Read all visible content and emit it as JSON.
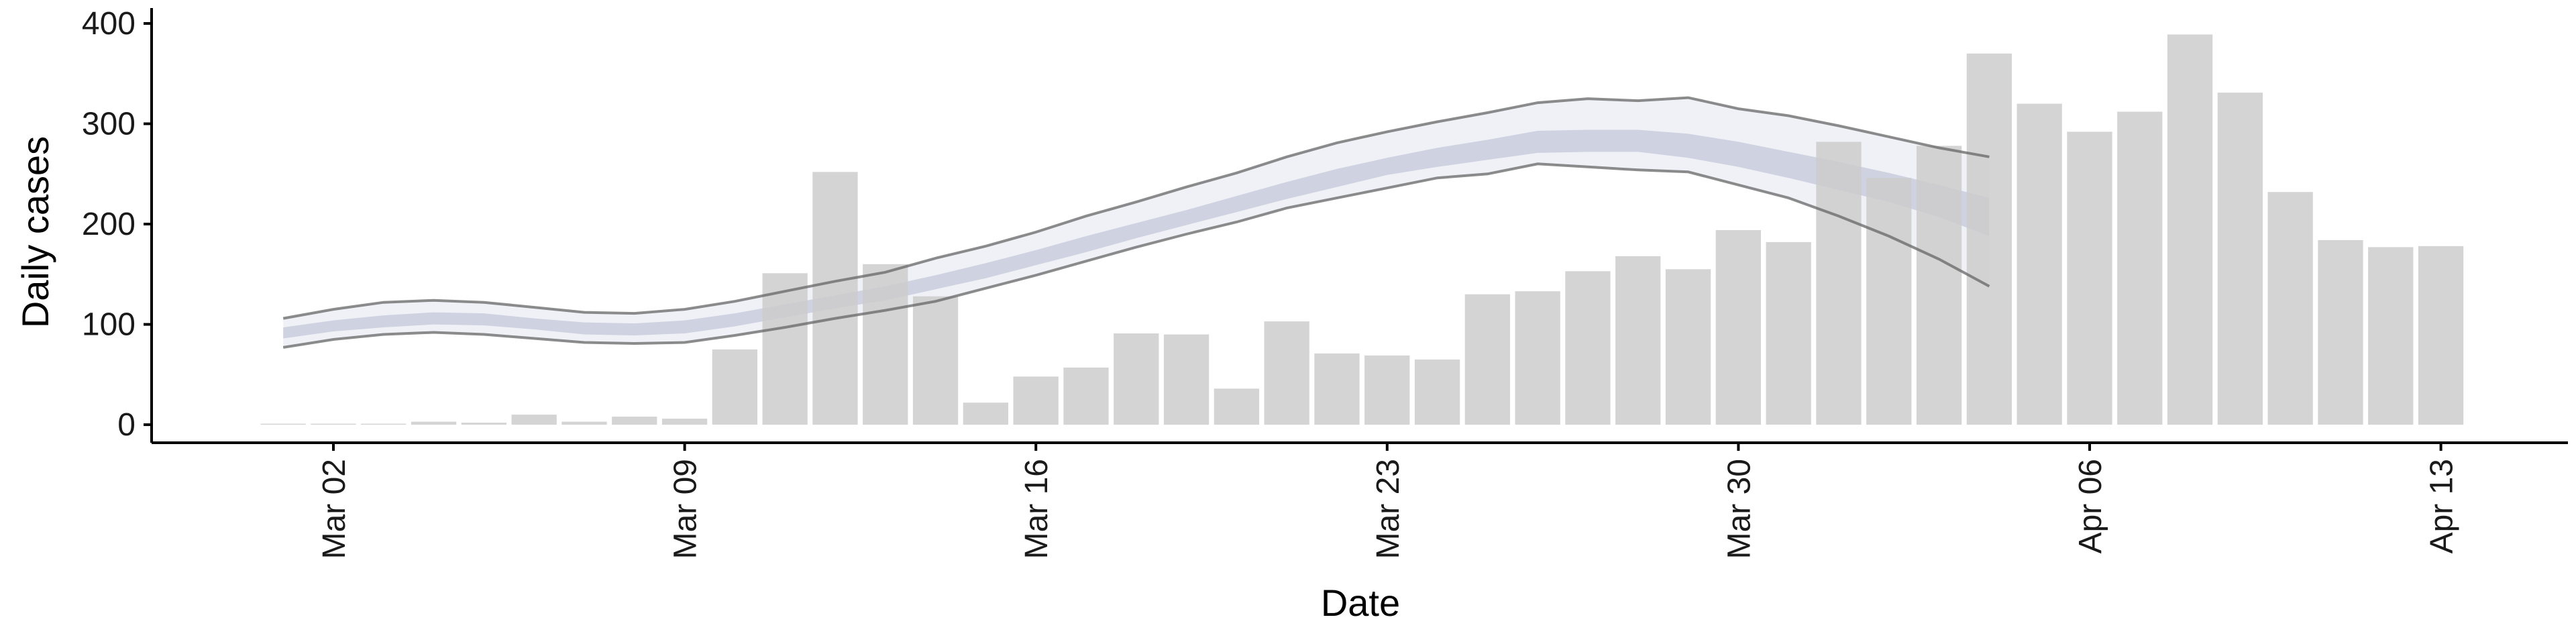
{
  "chart_data": {
    "type": "bar",
    "xlabel": "Date",
    "ylabel": "Daily cases",
    "ylim": [
      -18,
      410
    ],
    "yticks": [
      0,
      100,
      200,
      300,
      400
    ],
    "xticks": [
      {
        "date": "2020-03-02",
        "label": "Mar 02"
      },
      {
        "date": "2020-03-09",
        "label": "Mar 09"
      },
      {
        "date": "2020-03-16",
        "label": "Mar 16"
      },
      {
        "date": "2020-03-23",
        "label": "Mar 23"
      },
      {
        "date": "2020-03-30",
        "label": "Mar 30"
      },
      {
        "date": "2020-04-06",
        "label": "Apr 06"
      },
      {
        "date": "2020-04-13",
        "label": "Apr 13"
      }
    ],
    "xlim": [
      "2020-02-26",
      "2020-04-15"
    ],
    "grid": false,
    "bars": {
      "name": "Daily cases",
      "color": "#cccccc",
      "dates": [
        "2020-03-01",
        "2020-03-02",
        "2020-03-03",
        "2020-03-04",
        "2020-03-05",
        "2020-03-06",
        "2020-03-07",
        "2020-03-08",
        "2020-03-09",
        "2020-03-10",
        "2020-03-11",
        "2020-03-12",
        "2020-03-13",
        "2020-03-14",
        "2020-03-15",
        "2020-03-16",
        "2020-03-17",
        "2020-03-18",
        "2020-03-19",
        "2020-03-20",
        "2020-03-21",
        "2020-03-22",
        "2020-03-23",
        "2020-03-24",
        "2020-03-25",
        "2020-03-26",
        "2020-03-27",
        "2020-03-28",
        "2020-03-29",
        "2020-03-30",
        "2020-03-31",
        "2020-04-01",
        "2020-04-02",
        "2020-04-03",
        "2020-04-04",
        "2020-04-05",
        "2020-04-06",
        "2020-04-07",
        "2020-04-08",
        "2020-04-09",
        "2020-04-10",
        "2020-04-11",
        "2020-04-12",
        "2020-04-13"
      ],
      "values": [
        1,
        1,
        1,
        3,
        2,
        10,
        3,
        8,
        6,
        75,
        151,
        252,
        160,
        128,
        22,
        48,
        57,
        91,
        90,
        36,
        103,
        71,
        69,
        65,
        130,
        133,
        153,
        168,
        155,
        194,
        182,
        282,
        246,
        278,
        370,
        320,
        292,
        312,
        389,
        331,
        232,
        184,
        177,
        178
      ]
    },
    "bands": {
      "color": "#b3b8d0",
      "dates": [
        "2020-03-01",
        "2020-03-02",
        "2020-03-03",
        "2020-03-04",
        "2020-03-05",
        "2020-03-06",
        "2020-03-07",
        "2020-03-08",
        "2020-03-09",
        "2020-03-10",
        "2020-03-11",
        "2020-03-12",
        "2020-03-13",
        "2020-03-14",
        "2020-03-15",
        "2020-03-16",
        "2020-03-17",
        "2020-03-18",
        "2020-03-19",
        "2020-03-20",
        "2020-03-21",
        "2020-03-22",
        "2020-03-23",
        "2020-03-24",
        "2020-03-25",
        "2020-03-26",
        "2020-03-27",
        "2020-03-28",
        "2020-03-29",
        "2020-03-30",
        "2020-03-31",
        "2020-04-01",
        "2020-04-02",
        "2020-04-03",
        "2020-04-04"
      ],
      "outer_upper": [
        106,
        115,
        122,
        124,
        122,
        117,
        112,
        111,
        115,
        123,
        133,
        143,
        152,
        166,
        178,
        192,
        208,
        222,
        237,
        251,
        267,
        281,
        292,
        302,
        311,
        321,
        325,
        323,
        326,
        315,
        308,
        298,
        287,
        276,
        267
      ],
      "outer_lower": [
        77,
        85,
        90,
        92,
        90,
        86,
        82,
        81,
        82,
        89,
        97,
        106,
        114,
        123,
        136,
        149,
        163,
        177,
        190,
        202,
        216,
        226,
        236,
        246,
        250,
        260,
        257,
        254,
        252,
        239,
        226,
        208,
        188,
        165,
        138
      ],
      "inner_upper": [
        97,
        104,
        109,
        112,
        111,
        106,
        102,
        101,
        104,
        111,
        120,
        129,
        138,
        149,
        161,
        174,
        188,
        201,
        214,
        228,
        242,
        255,
        266,
        276,
        284,
        293,
        294,
        294,
        290,
        282,
        272,
        262,
        251,
        239,
        226
      ],
      "inner_lower": [
        86,
        93,
        97,
        100,
        99,
        95,
        90,
        89,
        91,
        98,
        107,
        116,
        124,
        135,
        146,
        159,
        172,
        186,
        199,
        212,
        225,
        237,
        249,
        257,
        264,
        271,
        272,
        272,
        266,
        257,
        246,
        234,
        222,
        207,
        188
      ],
      "inner_opacity": 0.55,
      "outer_opacity": 0.2,
      "outline_color": "#666666"
    }
  }
}
